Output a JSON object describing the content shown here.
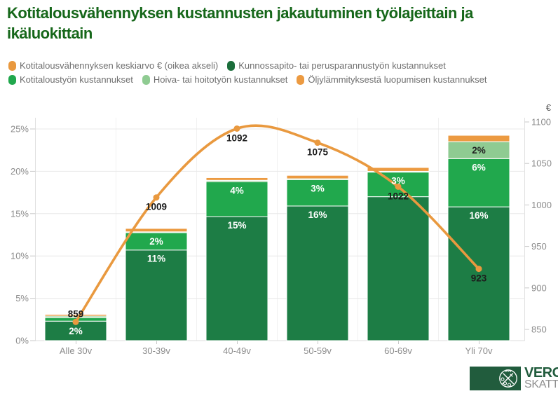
{
  "title": "Kotitalousvähennyksen kustannusten jakautuminen työlajeittain ja ikäluokittain",
  "legend": [
    {
      "id": "keskiarvo",
      "label": "Kotitalousvähennyksen keskiarvo € (oikea akseli)",
      "color": "#E9993F"
    },
    {
      "id": "kunnossapito",
      "label": "Kunnossapito- tai perusparannustyön kustannukset",
      "color": "#1B6E3B"
    },
    {
      "id": "kotitaloustyo",
      "label": "Kotitaloustyön kustannukset",
      "color": "#21A84D"
    },
    {
      "id": "hoiva",
      "label": "Hoiva- tai hoitotyön kustannukset",
      "color": "#8FCB92"
    },
    {
      "id": "oljylammitys",
      "label": "Öljylämmityksestä luopumisen kustannukset",
      "color": "#EC9A41"
    }
  ],
  "chart_data": {
    "type": "bar",
    "subtype": "stacked-bars-with-line",
    "categories": [
      "Alle 30v",
      "30-39v",
      "40-49v",
      "50-59v",
      "60-69v",
      "Yli 70v"
    ],
    "series": [
      {
        "name": "Kunnossapito- tai perusparannustyön kustannukset",
        "color": "#1D7D45",
        "values": [
          2.3,
          10.7,
          14.65,
          15.9,
          17.0,
          15.8
        ],
        "labels": [
          "2%",
          "11%",
          "15%",
          "16%",
          "",
          "16%"
        ],
        "label_color": "#ffffff"
      },
      {
        "name": "Kotitaloustyön kustannukset",
        "color": "#21A84D",
        "values": [
          0.4,
          2.05,
          4.1,
          3.1,
          2.9,
          5.7
        ],
        "labels": [
          "",
          "2%",
          "4%",
          "3%",
          "3%",
          "6%"
        ],
        "label_color": "#ffffff"
      },
      {
        "name": "Hoiva- tai hoitotyön kustannukset",
        "color": "#8FCB92",
        "values": [
          0.2,
          0.1,
          0.18,
          0.12,
          0.1,
          2.0
        ],
        "labels": [
          "",
          "",
          "",
          "",
          "",
          "2%"
        ],
        "label_color": "#222222"
      },
      {
        "name": "Öljylämmityksestä luopumisen kustannukset",
        "color": "#EC9A41",
        "values": [
          0.2,
          0.4,
          0.32,
          0.4,
          0.45,
          0.75
        ],
        "labels": [
          "",
          "",
          "",
          "",
          "",
          ""
        ],
        "label_color": "#ffffff"
      }
    ],
    "line": {
      "name": "Kotitalousvähennyksen keskiarvo € (oikea akseli)",
      "color": "#E9993F",
      "axis": "right",
      "values": [
        859,
        1009,
        1092,
        1075,
        1022,
        923
      ],
      "labels": [
        "859",
        "1009",
        "1092",
        "1075",
        "1022",
        "923"
      ]
    },
    "left_axis": {
      "ticks": [
        "0%",
        "5%",
        "10%",
        "15%",
        "20%",
        "25%"
      ],
      "min": 0,
      "max": 25,
      "grid": true
    },
    "right_axis": {
      "label": "€",
      "ticks": [
        "850",
        "900",
        "950",
        "1000",
        "1050",
        "1100"
      ],
      "min": 850,
      "max": 1100
    },
    "legend_position": "top"
  },
  "logo": {
    "text1": "VERO",
    "text2": "SKATT"
  }
}
